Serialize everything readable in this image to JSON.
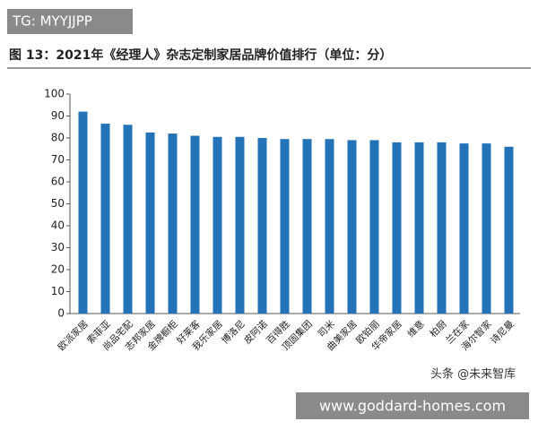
{
  "chart_data": {
    "type": "bar",
    "title": "图 13：2021年《经理人》杂志定制家居品牌价值排行（单位：分）",
    "categories": [
      "欧派家居",
      "索菲亚",
      "尚品宅配",
      "志邦家居",
      "金牌橱柜",
      "好莱客",
      "我乐家居",
      "博洛尼",
      "皮阿诺",
      "百得胜",
      "顶固集团",
      "司米",
      "曲美家居",
      "欧铂丽",
      "华帝家居",
      "维意",
      "柏厨",
      "兰在家",
      "海尔智家",
      "诗尼曼"
    ],
    "values": [
      92,
      86.5,
      86,
      82.5,
      82,
      81,
      80.5,
      80.5,
      80,
      79.5,
      79.5,
      79.5,
      79,
      79,
      78,
      78,
      78,
      77.5,
      77.5,
      76
    ],
    "color": "#2473b8",
    "ylim": [
      0,
      100
    ],
    "yticks": [
      0,
      10,
      20,
      30,
      40,
      50,
      60,
      70,
      80,
      90,
      100
    ],
    "grid": false
  },
  "watermarks": {
    "top_left": "TG: MYYJJPP",
    "source": "头条 @未来智库",
    "bottom_right": "www.goddard-homes.com"
  }
}
